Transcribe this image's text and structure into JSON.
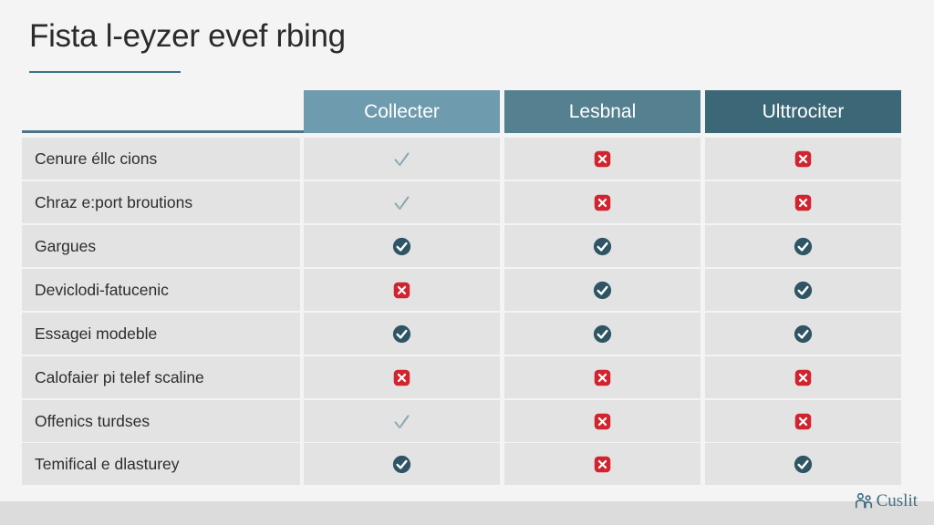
{
  "title": "Fista l-eyzer evef rbing",
  "columns": [
    "Collecter",
    "Lesbnal",
    "Ulttrociter"
  ],
  "rows": [
    {
      "label": "Cenure éllc cions",
      "marks": [
        "light-check",
        "cross",
        "cross"
      ]
    },
    {
      "label": "Chraz e:port broutions",
      "marks": [
        "light-check",
        "cross",
        "cross"
      ]
    },
    {
      "label": "Gargues",
      "marks": [
        "check",
        "check",
        "check"
      ]
    },
    {
      "label": "Deviclodi-fatucenic",
      "marks": [
        "cross",
        "check",
        "check"
      ]
    },
    {
      "label": "Essagei modeble",
      "marks": [
        "check",
        "check",
        "check"
      ]
    },
    {
      "label": "Calofaier pi telef scaline",
      "marks": [
        "cross",
        "cross",
        "cross"
      ]
    },
    {
      "label": "Offenics turdses",
      "marks": [
        "light-check",
        "cross",
        "cross"
      ]
    },
    {
      "label": "Temifical e dlasturey",
      "marks": [
        "check",
        "cross",
        "check"
      ]
    }
  ],
  "icons": {
    "check": "check-circle-icon",
    "light-check": "check-outline-icon",
    "cross": "cross-square-icon"
  },
  "colors": {
    "check": "#2f5564",
    "cross": "#d1242f",
    "light_check": "#8aa3ae",
    "header_1": "#6f9bae",
    "header_2": "#55808f",
    "header_3": "#3c6777"
  },
  "logo": {
    "text": "Cuslit",
    "icon": "people-icon"
  }
}
